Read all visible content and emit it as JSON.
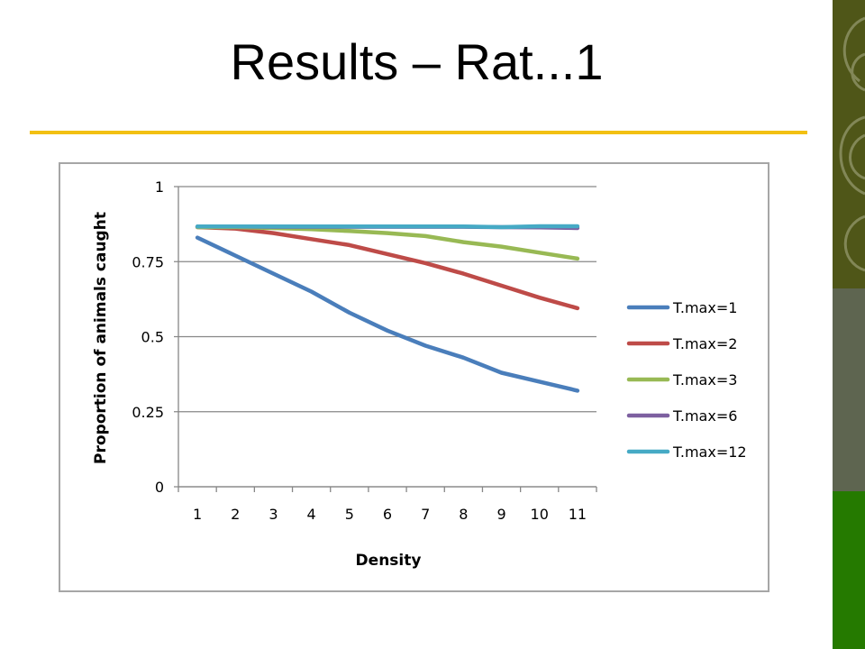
{
  "slide": {
    "title": "Results – Rat...1",
    "accent_color": "#f2c013",
    "sidebar_colors": [
      "#4f5618",
      "#5e6550",
      "#257a00"
    ]
  },
  "chart_data": {
    "type": "line",
    "title": "",
    "xlabel": "Density",
    "ylabel": "Proportion of animals caught",
    "categories": [
      "1",
      "2",
      "3",
      "4",
      "5",
      "6",
      "7",
      "8",
      "9",
      "10",
      "11"
    ],
    "y_ticks": [
      "0",
      "0.25",
      "0.5",
      "0.75",
      "1"
    ],
    "ylim": [
      0,
      1
    ],
    "grid": true,
    "legend_position": "right",
    "series": [
      {
        "name": "T.max=1",
        "color": "#4a7ebb",
        "values": [
          0.83,
          0.77,
          0.71,
          0.65,
          0.58,
          0.52,
          0.47,
          0.43,
          0.38,
          0.35,
          0.32
        ]
      },
      {
        "name": "T.max=2",
        "color": "#be4b48",
        "values": [
          0.865,
          0.86,
          0.845,
          0.825,
          0.805,
          0.775,
          0.745,
          0.71,
          0.67,
          0.63,
          0.595
        ]
      },
      {
        "name": "T.max=3",
        "color": "#98b954",
        "values": [
          0.865,
          0.865,
          0.862,
          0.858,
          0.852,
          0.845,
          0.835,
          0.815,
          0.8,
          0.78,
          0.76
        ]
      },
      {
        "name": "T.max=6",
        "color": "#7d60a0",
        "values": [
          0.867,
          0.867,
          0.866,
          0.866,
          0.866,
          0.866,
          0.866,
          0.866,
          0.865,
          0.864,
          0.862
        ]
      },
      {
        "name": "T.max=12",
        "color": "#46aac5",
        "values": [
          0.867,
          0.867,
          0.867,
          0.867,
          0.867,
          0.867,
          0.867,
          0.867,
          0.865,
          0.868,
          0.868
        ]
      }
    ]
  }
}
